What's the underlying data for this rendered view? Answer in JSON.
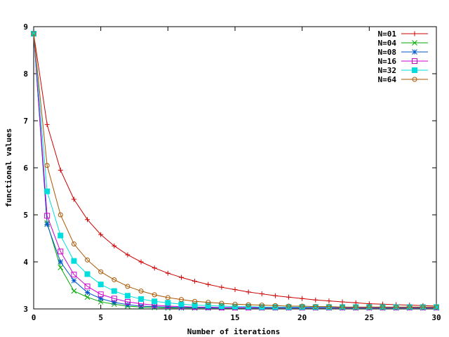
{
  "chart_data": {
    "type": "line",
    "title": "",
    "xlabel": "Number of iterations",
    "ylabel": "functional values",
    "xlim": [
      0,
      30
    ],
    "ylim": [
      3,
      9
    ],
    "x_ticks": [
      "0",
      "5",
      "10",
      "15",
      "20",
      "25",
      "30"
    ],
    "y_ticks": [
      "3",
      "4",
      "5",
      "6",
      "7",
      "8",
      "9"
    ],
    "grid": false,
    "legend_position": "top-right",
    "x": [
      0,
      1,
      2,
      3,
      4,
      5,
      6,
      7,
      8,
      9,
      10,
      11,
      12,
      13,
      14,
      15,
      16,
      17,
      18,
      19,
      20,
      21,
      22,
      23,
      24,
      25,
      26,
      27,
      28,
      29,
      30
    ],
    "series": [
      {
        "name": "N=01",
        "color": "#cc0000",
        "marker": "plus",
        "values": [
          8.85,
          6.92,
          5.95,
          5.33,
          4.9,
          4.58,
          4.34,
          4.15,
          4.0,
          3.87,
          3.76,
          3.67,
          3.59,
          3.52,
          3.46,
          3.41,
          3.36,
          3.32,
          3.28,
          3.25,
          3.22,
          3.19,
          3.17,
          3.15,
          3.13,
          3.11,
          3.1,
          3.09,
          3.08,
          3.07,
          3.06
        ]
      },
      {
        "name": "N=04",
        "color": "#00aa00",
        "marker": "cross",
        "values": [
          8.85,
          4.83,
          3.88,
          3.38,
          3.25,
          3.15,
          3.1,
          3.06,
          3.04,
          3.03,
          3.02,
          3.02,
          3.02,
          3.02,
          3.02,
          3.02,
          3.02,
          3.02,
          3.02,
          3.02,
          3.02,
          3.02,
          3.02,
          3.02,
          3.02,
          3.02,
          3.02,
          3.02,
          3.02,
          3.02,
          3.02
        ]
      },
      {
        "name": "N=08",
        "color": "#0055cc",
        "marker": "star",
        "values": [
          8.85,
          4.8,
          4.0,
          3.6,
          3.35,
          3.22,
          3.14,
          3.09,
          3.06,
          3.05,
          3.04,
          3.03,
          3.03,
          3.02,
          3.02,
          3.02,
          3.02,
          3.02,
          3.02,
          3.02,
          3.02,
          3.02,
          3.02,
          3.02,
          3.02,
          3.02,
          3.02,
          3.02,
          3.02,
          3.02,
          3.02
        ]
      },
      {
        "name": "N=16",
        "color": "#cc00cc",
        "marker": "open-square",
        "values": [
          8.85,
          4.98,
          4.22,
          3.73,
          3.48,
          3.31,
          3.22,
          3.15,
          3.11,
          3.08,
          3.06,
          3.05,
          3.04,
          3.04,
          3.03,
          3.03,
          3.03,
          3.03,
          3.03,
          3.03,
          3.03,
          3.03,
          3.03,
          3.03,
          3.03,
          3.03,
          3.03,
          3.03,
          3.03,
          3.03,
          3.03
        ]
      },
      {
        "name": "N=32",
        "color": "#00dddd",
        "marker": "filled-square",
        "values": [
          8.85,
          5.5,
          4.56,
          4.02,
          3.74,
          3.52,
          3.38,
          3.28,
          3.21,
          3.16,
          3.13,
          3.1,
          3.08,
          3.07,
          3.06,
          3.05,
          3.05,
          3.04,
          3.04,
          3.04,
          3.04,
          3.04,
          3.04,
          3.04,
          3.04,
          3.04,
          3.04,
          3.04,
          3.04,
          3.04,
          3.04
        ]
      },
      {
        "name": "N=64",
        "color": "#aa5500",
        "marker": "open-circle",
        "values": [
          8.85,
          6.05,
          5.0,
          4.38,
          4.04,
          3.79,
          3.62,
          3.48,
          3.38,
          3.3,
          3.24,
          3.2,
          3.16,
          3.14,
          3.12,
          3.1,
          3.09,
          3.08,
          3.07,
          3.06,
          3.06,
          3.05,
          3.05,
          3.04,
          3.04,
          3.04,
          3.04,
          3.04,
          3.04,
          3.04,
          3.04
        ]
      }
    ]
  }
}
